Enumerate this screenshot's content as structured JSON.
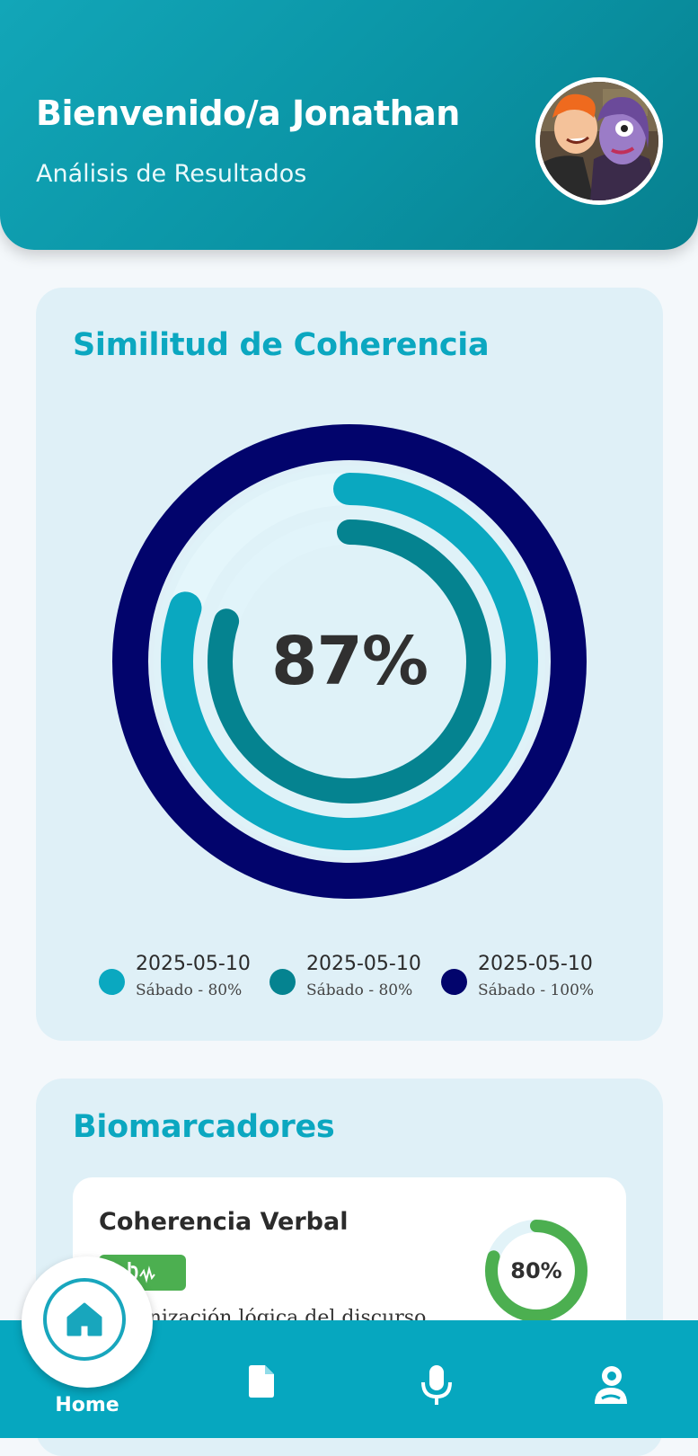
{
  "header": {
    "welcome": "Bienvenido/a Jonathan",
    "subtitle": "Análisis de Resultados"
  },
  "coherence": {
    "title": "Similitud de Coherencia",
    "center_value": "87%",
    "rings": [
      {
        "label": "2025-05-10",
        "detail": "Sábado - 80%",
        "percent": 80,
        "color": "#0aa8c0"
      },
      {
        "label": "2025-05-10",
        "detail": "Sábado - 80%",
        "percent": 80,
        "color": "#058390"
      },
      {
        "label": "2025-05-10",
        "detail": "Sábado - 100%",
        "percent": 100,
        "color": "#02046c"
      }
    ]
  },
  "biomarkers": {
    "title": "Biomarcadores",
    "items": [
      {
        "name": "Coherencia Verbal",
        "value": "80%",
        "percent": 80,
        "description": "Organización lógica del discurso",
        "color": "#4caf50"
      }
    ]
  },
  "nav": {
    "home_label": "Home",
    "items": [
      "home-icon",
      "document-icon",
      "microphone-icon",
      "profile-icon"
    ]
  },
  "colors": {
    "accent": "#0ba7c0",
    "nav_bg": "#06a7bf",
    "card_bg": "#dff0f7",
    "header_bg": "#0a93a4"
  }
}
